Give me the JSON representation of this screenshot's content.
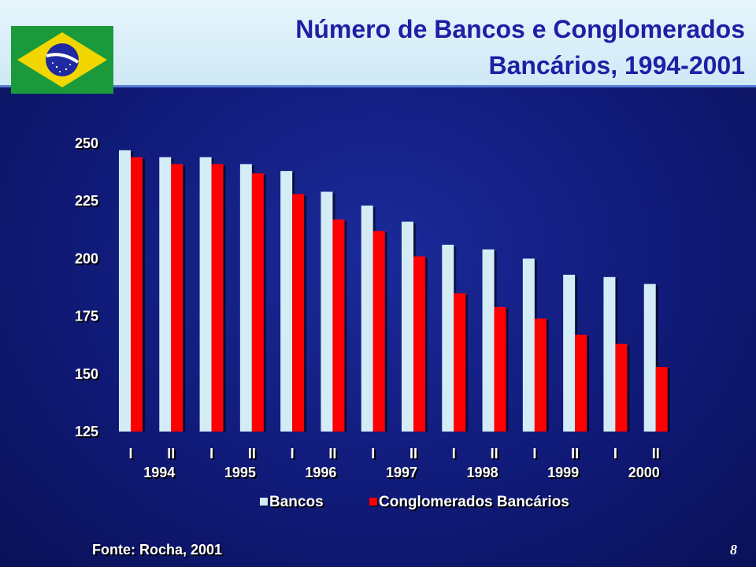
{
  "header": {
    "title_line1": "Número de Bancos e Conglomerados",
    "title_line2": "Bancários, 1994-2001"
  },
  "flag": {
    "name": "brazil-flag",
    "colors": {
      "green": "#1a9a3a",
      "yellow": "#f2d600",
      "blue": "#1f2aa0"
    }
  },
  "chart_data": {
    "type": "bar",
    "categories": [
      "I",
      "II",
      "I",
      "II",
      "I",
      "II",
      "I",
      "II",
      "I",
      "II",
      "I",
      "II",
      "I",
      "II"
    ],
    "year_labels": [
      "1994",
      "1995",
      "1996",
      "1997",
      "1998",
      "1999",
      "2000"
    ],
    "series": [
      {
        "name": "Bancos",
        "color": "#d3ecf6",
        "values": [
          247,
          244,
          244,
          241,
          238,
          229,
          223,
          216,
          206,
          204,
          200,
          193,
          192,
          189
        ]
      },
      {
        "name": "Conglomerados Bancários",
        "color": "#ff0000",
        "values": [
          244,
          241,
          241,
          237,
          228,
          217,
          212,
          201,
          185,
          179,
          174,
          167,
          163,
          153
        ]
      }
    ],
    "yticks": [
      125,
      150,
      175,
      200,
      225,
      250
    ],
    "ylim": [
      125,
      250
    ],
    "legend_position": "bottom",
    "grid": false
  },
  "source": "Fonte: Rocha, 2001",
  "page_number": "8"
}
